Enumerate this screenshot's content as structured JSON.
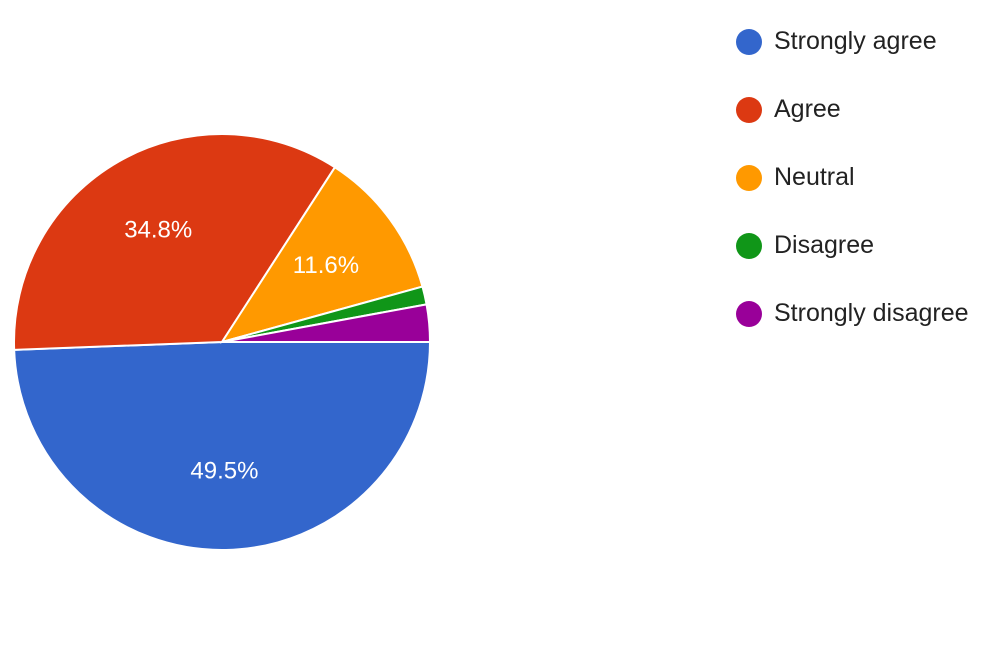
{
  "chart_data": {
    "type": "pie",
    "categories": [
      "Strongly agree",
      "Agree",
      "Neutral",
      "Disagree",
      "Strongly disagree"
    ],
    "values": [
      49.5,
      34.8,
      11.6,
      1.4,
      2.9
    ],
    "data_labels": [
      "49.5%",
      "34.8%",
      "11.6%",
      "",
      ""
    ],
    "colors": [
      "#3366cc",
      "#dc3912",
      "#ff9900",
      "#109618",
      "#990099"
    ],
    "legend_position": "right",
    "start_direction": "east, clockwise"
  }
}
